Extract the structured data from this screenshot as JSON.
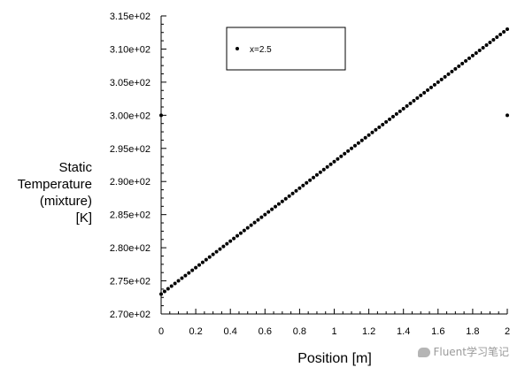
{
  "chart_data": {
    "type": "scatter",
    "xlabel": "Position [m]",
    "ylabel_lines": [
      "Static",
      "Temperature",
      "(mixture)",
      "[K]"
    ],
    "xlim": [
      0,
      2
    ],
    "ylim": [
      270,
      315
    ],
    "x_ticks": [
      0,
      0.2,
      0.4,
      0.6,
      0.8,
      1,
      1.2,
      1.4,
      1.6,
      1.8,
      2
    ],
    "x_tick_labels": [
      "0",
      "0.2",
      "0.4",
      "0.6",
      "0.8",
      "1",
      "1.2",
      "1.4",
      "1.6",
      "1.8",
      "2"
    ],
    "y_ticks": [
      270,
      275,
      280,
      285,
      290,
      295,
      300,
      305,
      310,
      315
    ],
    "y_tick_labels": [
      "2.70e+02",
      "2.75e+02",
      "2.80e+02",
      "2.85e+02",
      "2.90e+02",
      "2.95e+02",
      "3.00e+02",
      "3.05e+02",
      "3.10e+02",
      "3.15e+02"
    ],
    "grid": false,
    "legend_position": "top-center",
    "series": [
      {
        "name": "x=2.5",
        "linear_segment": {
          "x_start": 0,
          "x_end": 2,
          "y_start": 273.0,
          "y_end": 313.0,
          "n_points": 101
        },
        "points": [
          [
            0,
            300
          ],
          [
            2,
            300
          ]
        ]
      }
    ]
  },
  "watermark": "Fluent学习笔记",
  "colors": {
    "marker": "#000000",
    "axis": "#000000",
    "background": "#ffffff"
  }
}
